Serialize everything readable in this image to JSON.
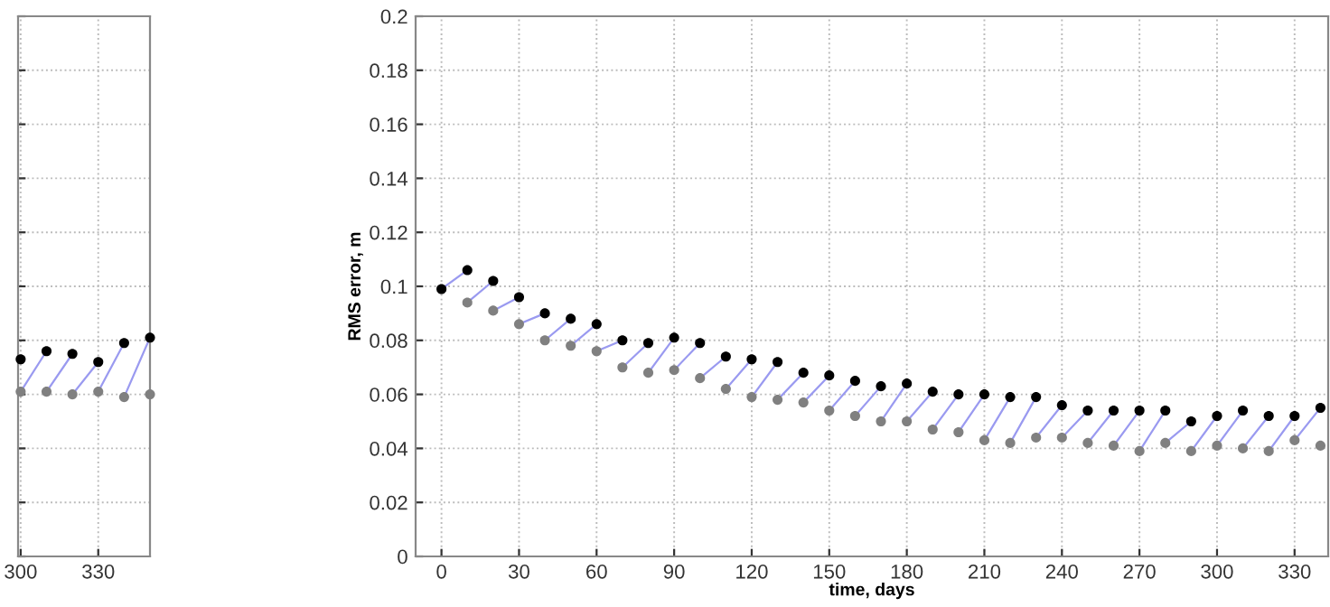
{
  "chart_data": [
    {
      "type": "scatter",
      "xlim": [
        299,
        350
      ],
      "ylim": [
        0,
        0.2
      ],
      "xticks": [
        300,
        330
      ],
      "yticks": [
        0,
        0.02,
        0.04,
        0.06,
        0.08,
        0.1,
        0.12,
        0.14,
        0.16,
        0.18,
        0.2
      ],
      "tick_labels": "x",
      "grid": true,
      "marker": "circle",
      "series": [
        {
          "type": "line",
          "color": "#9a9af0",
          "marker": "none",
          "x": [
            300,
            310,
            null,
            310,
            320,
            null,
            320,
            330,
            null,
            330,
            340,
            null,
            340,
            350,
            null
          ],
          "values": [
            0.061,
            0.076,
            null,
            0.061,
            0.075,
            null,
            0.06,
            0.072,
            null,
            0.061,
            0.079,
            null,
            0.059,
            0.081,
            null
          ]
        },
        {
          "color": "#000000",
          "x": [
            300,
            310,
            320,
            330,
            340,
            350
          ],
          "values": [
            0.073,
            0.076,
            0.075,
            0.072,
            0.079,
            0.081
          ]
        },
        {
          "color": "#808080",
          "x": [
            300,
            310,
            320,
            330,
            340,
            350
          ],
          "values": [
            0.061,
            0.061,
            0.06,
            0.061,
            0.059,
            0.06
          ]
        }
      ]
    },
    {
      "type": "scatter",
      "xlabel": "time, days",
      "ylabel": "RMS error, m",
      "xlim": [
        -10,
        343
      ],
      "ylim": [
        0,
        0.2
      ],
      "xticks": [
        0,
        30,
        60,
        90,
        120,
        150,
        180,
        210,
        240,
        270,
        300,
        330
      ],
      "yticks": [
        0,
        0.02,
        0.04,
        0.06,
        0.08,
        0.1,
        0.12,
        0.14,
        0.16,
        0.18,
        0.2
      ],
      "grid": true,
      "marker": "circle",
      "series": [
        {
          "type": "line",
          "color": "#9a9af0",
          "marker": "none",
          "x": [
            0,
            10,
            null,
            10,
            20,
            null,
            20,
            30,
            null,
            30,
            40,
            null,
            40,
            50,
            null,
            50,
            60,
            null,
            60,
            70,
            null,
            70,
            80,
            null,
            80,
            90,
            null,
            90,
            100,
            null,
            100,
            110,
            null,
            110,
            120,
            null,
            120,
            130,
            null,
            130,
            140,
            null,
            140,
            150,
            null,
            150,
            160,
            null,
            160,
            170,
            null,
            170,
            180,
            null,
            180,
            190,
            null,
            190,
            200,
            null,
            200,
            210,
            null,
            210,
            220,
            null,
            220,
            230,
            null,
            230,
            240,
            null,
            240,
            250,
            null,
            250,
            260,
            null,
            260,
            270,
            null,
            270,
            280,
            null,
            280,
            290,
            null,
            290,
            300,
            null,
            300,
            310,
            null,
            310,
            320,
            null,
            320,
            330,
            null,
            330,
            340,
            null
          ],
          "values": [
            0.099,
            0.106,
            null,
            0.094,
            0.102,
            null,
            0.091,
            0.096,
            null,
            0.086,
            0.09,
            null,
            0.08,
            0.088,
            null,
            0.078,
            0.086,
            null,
            0.076,
            0.08,
            null,
            0.07,
            0.079,
            null,
            0.068,
            0.081,
            null,
            0.069,
            0.079,
            null,
            0.066,
            0.074,
            null,
            0.062,
            0.073,
            null,
            0.059,
            0.072,
            null,
            0.058,
            0.068,
            null,
            0.057,
            0.067,
            null,
            0.054,
            0.065,
            null,
            0.052,
            0.063,
            null,
            0.05,
            0.064,
            null,
            0.05,
            0.061,
            null,
            0.047,
            0.06,
            null,
            0.046,
            0.06,
            null,
            0.043,
            0.059,
            null,
            0.042,
            0.059,
            null,
            0.044,
            0.056,
            null,
            0.044,
            0.054,
            null,
            0.042,
            0.054,
            null,
            0.041,
            0.054,
            null,
            0.039,
            0.054,
            null,
            0.042,
            0.05,
            null,
            0.039,
            0.052,
            null,
            0.041,
            0.054,
            null,
            0.04,
            0.052,
            null,
            0.039,
            0.052,
            null,
            0.043,
            0.055,
            null
          ]
        },
        {
          "color": "#000000",
          "x": [
            0,
            10,
            20,
            30,
            40,
            50,
            60,
            70,
            80,
            90,
            100,
            110,
            120,
            130,
            140,
            150,
            160,
            170,
            180,
            190,
            200,
            210,
            220,
            230,
            240,
            250,
            260,
            270,
            280,
            290,
            300,
            310,
            320,
            330,
            340
          ],
          "values": [
            0.099,
            0.106,
            0.102,
            0.096,
            0.09,
            0.088,
            0.086,
            0.08,
            0.079,
            0.081,
            0.079,
            0.074,
            0.073,
            0.072,
            0.068,
            0.067,
            0.065,
            0.063,
            0.064,
            0.061,
            0.06,
            0.06,
            0.059,
            0.059,
            0.056,
            0.054,
            0.054,
            0.054,
            0.054,
            0.05,
            0.052,
            0.054,
            0.052,
            0.052,
            0.055
          ]
        },
        {
          "color": "#808080",
          "x": [
            10,
            20,
            30,
            40,
            50,
            60,
            70,
            80,
            90,
            100,
            110,
            120,
            130,
            140,
            150,
            160,
            170,
            180,
            190,
            200,
            210,
            220,
            230,
            240,
            250,
            260,
            270,
            280,
            290,
            300,
            310,
            320,
            330,
            340
          ],
          "values": [
            0.094,
            0.091,
            0.086,
            0.08,
            0.078,
            0.076,
            0.07,
            0.068,
            0.069,
            0.066,
            0.062,
            0.059,
            0.058,
            0.057,
            0.054,
            0.052,
            0.05,
            0.05,
            0.047,
            0.046,
            0.043,
            0.042,
            0.044,
            0.044,
            0.042,
            0.041,
            0.039,
            0.042,
            0.039,
            0.041,
            0.04,
            0.039,
            0.043,
            0.041
          ]
        }
      ]
    }
  ]
}
